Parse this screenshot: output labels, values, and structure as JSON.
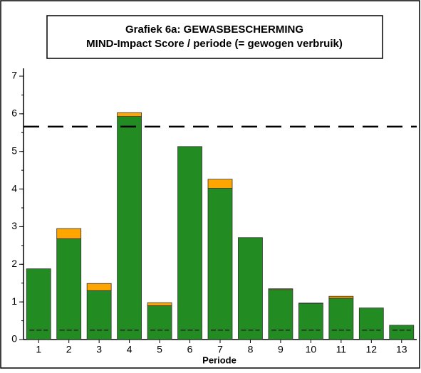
{
  "chart_data": {
    "type": "stacked_bar",
    "title": [
      "Grafiek 6a: GEWASBESCHERMING",
      "MIND-Impact Score / periode (= gewogen verbruik)"
    ],
    "x_label": "Periode",
    "categories": [
      "1",
      "2",
      "3",
      "4",
      "5",
      "6",
      "7",
      "8",
      "9",
      "10",
      "11",
      "12",
      "13"
    ],
    "series": [
      {
        "color": "#228b22",
        "values": [
          1.88,
          2.68,
          1.3,
          5.93,
          0.9,
          5.13,
          4.02,
          2.71,
          1.33,
          0.96,
          1.1,
          0.84,
          0.38
        ]
      },
      {
        "color": "#ffa500",
        "values": [
          0,
          0.27,
          0.19,
          0.1,
          0.08,
          0,
          0.24,
          0,
          0.02,
          0.01,
          0.05,
          0,
          0
        ]
      }
    ],
    "reference_lines": [
      {
        "value": 5.66,
        "style": "long-dash",
        "color": "#000000"
      },
      {
        "value": 0.25,
        "style": "in-bar-dash",
        "color": "#222222"
      }
    ],
    "ylim": [
      0,
      7
    ],
    "yticks": [
      0,
      1,
      2,
      3,
      4,
      5,
      6,
      7
    ],
    "minor_ytick_step": 0.5
  }
}
